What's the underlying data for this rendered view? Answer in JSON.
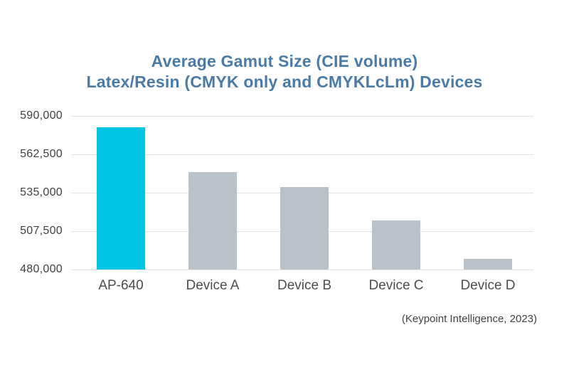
{
  "title": {
    "line1": "Average Gamut Size (CIE volume)",
    "line2": "Latex/Resin (CMYK only and CMYKLcLm) Devices"
  },
  "citation": "(Keypoint Intelligence, 2023)",
  "colors": {
    "title_blue": "#4A7BA6",
    "highlight_bar": "#00C5E4",
    "default_bar": "#B9C2CB",
    "gridline": "#E3E3E3",
    "y_axis_label": "#414042",
    "x_axis_label": "#4D4D4F"
  },
  "chart_data": {
    "type": "bar",
    "title": "Average Gamut Size (CIE volume)",
    "subtitle": "Latex/Resin (CMYK only and CMYKLcLm) Devices",
    "categories": [
      "AP-640",
      "Device A",
      "Device B",
      "Device C",
      "Device D"
    ],
    "values": [
      582000,
      550000,
      539000,
      515000,
      487500
    ],
    "highlight_index": 0,
    "xlabel": "",
    "ylabel": "",
    "ylim": [
      480000,
      590000
    ],
    "y_ticks": [
      590000,
      562500,
      535000,
      507500,
      480000
    ],
    "y_tick_labels": [
      "590,000",
      "562,500",
      "535,000",
      "507,500",
      "480,000"
    ],
    "grid": true,
    "legend": false,
    "annotation": "(Keypoint Intelligence, 2023)"
  }
}
